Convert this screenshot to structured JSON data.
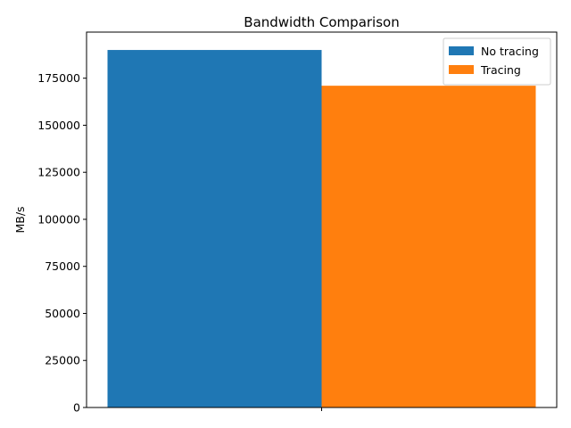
{
  "chart_data": {
    "type": "bar",
    "title": "Bandwidth Comparison",
    "xlabel": "",
    "ylabel": "MB/s",
    "categories": [
      ""
    ],
    "series": [
      {
        "name": "No tracing",
        "values": [
          190000
        ],
        "color": "#1f77b4"
      },
      {
        "name": "Tracing",
        "values": [
          171000
        ],
        "color": "#ff7f0e"
      }
    ],
    "ylim": [
      0,
      199500
    ],
    "yticks": [
      0,
      25000,
      50000,
      75000,
      100000,
      125000,
      150000,
      175000
    ],
    "ytick_labels": [
      "0",
      "25000",
      "50000",
      "75000",
      "100000",
      "125000",
      "150000",
      "175000"
    ],
    "grid": false,
    "legend_position": "top-right"
  }
}
